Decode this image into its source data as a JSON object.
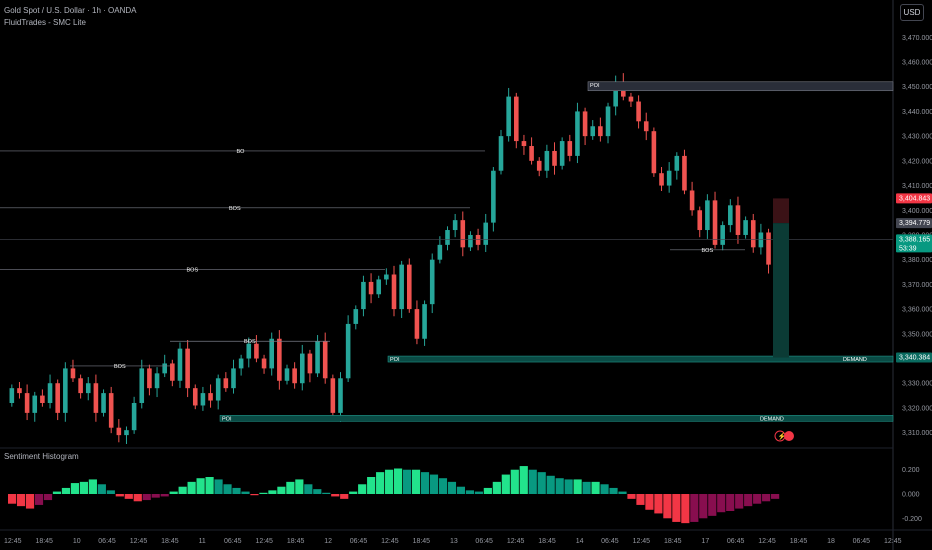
{
  "header": {
    "title": "Gold Spot / U.S. Dollar · 1h · OANDA",
    "indicator": "FluidTrades - SMC Lite"
  },
  "currency_button": "USD",
  "histogram_title": "Sentiment Histogram",
  "colors": {
    "bull": "#26a69a",
    "bear": "#ef5350",
    "hist_pos": "#089981",
    "hist_pos_bright": "#22e38c",
    "hist_neg": "#880e4f",
    "hist_neg_bright": "#f23645",
    "zone": "#0a4b45"
  },
  "chart_data": {
    "type": "candlestick",
    "y_range": [
      3305,
      3477
    ],
    "y_ticks": [
      "3,470.000",
      "3,460.000",
      "3,450.000",
      "3,440.000",
      "3,430.000",
      "3,420.000",
      "3,410.000",
      "3,400.000",
      "3,390.000",
      "3,380.000",
      "3,370.000",
      "3,360.000",
      "3,350.000",
      "3,340.000",
      "3,330.000",
      "3,320.000",
      "3,310.000"
    ],
    "x_ticks": [
      "12:45",
      "18:45",
      "10",
      "06:45",
      "12:45",
      "18:45",
      "11",
      "06:45",
      "12:45",
      "18:45",
      "12",
      "06:45",
      "12:45",
      "18:45",
      "13",
      "06:45",
      "12:45",
      "18:45",
      "14",
      "06:45",
      "12:45",
      "18:45",
      "17",
      "06:45",
      "12:45",
      "18:45",
      "18",
      "06:45",
      "12:45"
    ],
    "price_path": [
      3322,
      3328,
      3326,
      3318,
      3325,
      3322,
      3330,
      3318,
      3336,
      3332,
      3326,
      3330,
      3318,
      3326,
      3312,
      3309,
      3311,
      3322,
      3336,
      3328,
      3334,
      3338,
      3331,
      3344,
      3328,
      3321,
      3326,
      3323,
      3332,
      3328,
      3336,
      3340,
      3346,
      3340,
      3336,
      3348,
      3331,
      3336,
      3330,
      3342,
      3334,
      3347,
      3332,
      3318,
      3332,
      3354,
      3360,
      3371,
      3366,
      3372,
      3374,
      3360,
      3378,
      3360,
      3348,
      3362,
      3380,
      3386,
      3392,
      3396,
      3385,
      3390,
      3386,
      3395,
      3416,
      3430,
      3446,
      3428,
      3426,
      3420,
      3416,
      3424,
      3418,
      3428,
      3422,
      3440,
      3430,
      3434,
      3430,
      3442,
      3452,
      3446,
      3444,
      3436,
      3432,
      3415,
      3410,
      3416,
      3422,
      3408,
      3400,
      3392,
      3404,
      3386,
      3394,
      3402,
      3390,
      3396,
      3385,
      3391,
      3378,
      3388
    ],
    "annotations": [
      {
        "label": "POI",
        "type": "supply-zone",
        "y_top": 3452,
        "y_bottom": 3450
      },
      {
        "label": "POI",
        "type": "demand-zone",
        "y_top": 3341,
        "y_bottom": 3339
      },
      {
        "label": "DEMAND",
        "type": "demand-zone-label",
        "y": 3340
      },
      {
        "label": "POI",
        "type": "demand-zone",
        "y_top": 3317,
        "y_bottom": 3316
      },
      {
        "label": "DEMAND",
        "type": "demand-zone-label",
        "y": 3316.5
      },
      {
        "label": "BO",
        "y": 3424
      },
      {
        "label": "BOS",
        "y": 3401
      },
      {
        "label": "BOS",
        "y": 3376
      },
      {
        "label": "BOS",
        "y": 3347
      },
      {
        "label": "BOS",
        "y": 3337
      },
      {
        "label": "BOS",
        "y": 3384
      }
    ],
    "price_labels": [
      {
        "text": "3,404.843",
        "y": 3404.8,
        "color": "#f23645"
      },
      {
        "text": "3,394.779",
        "y": 3394.8,
        "color": "#434651"
      },
      {
        "text": "3,388.165",
        "sub": "53:39",
        "y": 3388.2,
        "color": "#089981"
      },
      {
        "text": "3,340.384",
        "y": 3340.4,
        "color": "#0a6b60"
      }
    ],
    "histogram": {
      "y_ticks": [
        "0.200",
        "0.000",
        "-0.200"
      ],
      "values": [
        -0.08,
        -0.1,
        -0.12,
        -0.09,
        -0.05,
        0.02,
        0.05,
        0.09,
        0.1,
        0.12,
        0.08,
        0.03,
        -0.02,
        -0.04,
        -0.06,
        -0.05,
        -0.03,
        -0.02,
        0.02,
        0.06,
        0.1,
        0.13,
        0.14,
        0.12,
        0.08,
        0.05,
        0.02,
        -0.01,
        0.01,
        0.03,
        0.06,
        0.1,
        0.12,
        0.08,
        0.04,
        0.01,
        -0.02,
        -0.04,
        0.02,
        0.08,
        0.14,
        0.18,
        0.2,
        0.21,
        0.2,
        0.2,
        0.18,
        0.16,
        0.13,
        0.1,
        0.06,
        0.03,
        0.02,
        0.05,
        0.1,
        0.16,
        0.2,
        0.23,
        0.2,
        0.18,
        0.15,
        0.13,
        0.12,
        0.12,
        0.1,
        0.1,
        0.08,
        0.05,
        0.02,
        -0.04,
        -0.09,
        -0.13,
        -0.16,
        -0.2,
        -0.23,
        -0.24,
        -0.23,
        -0.2,
        -0.18,
        -0.15,
        -0.14,
        -0.12,
        -0.1,
        -0.08,
        -0.06,
        -0.04
      ]
    }
  }
}
